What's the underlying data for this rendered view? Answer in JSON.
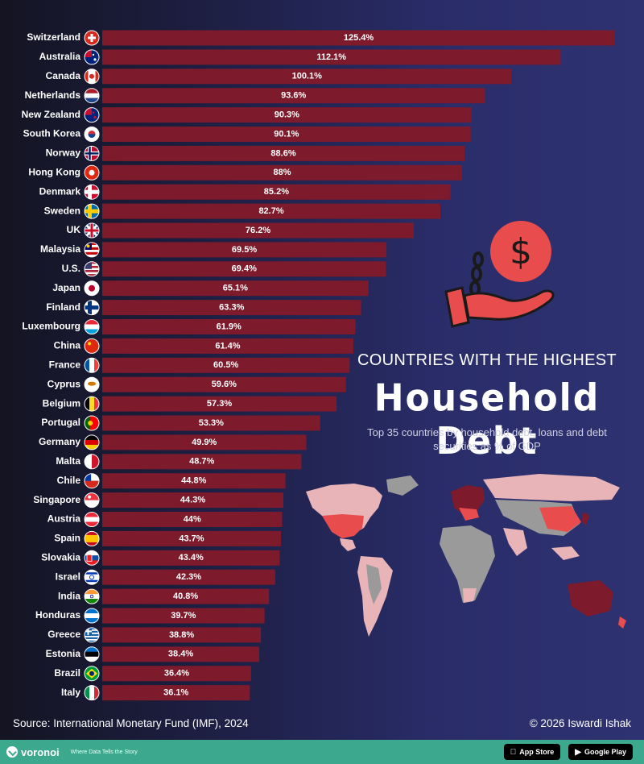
{
  "title_line1": "COUNTRIES WITH THE HIGHEST",
  "title_line2": "Household Debt",
  "subtitle": "Top 35 countries by household debt, loans and debt securities as % of GDP",
  "source": "Source: International Monetary Fund (IMF), 2024",
  "credit": "© 2026 Iswardi Ishak",
  "footer": {
    "brand": "voronoi",
    "tagline": "Where Data Tells the Story",
    "app_store": "App Store",
    "google_play": "Google Play"
  },
  "colors": {
    "bar": "#7d1a2b",
    "accent": "#e84c4c",
    "footer": "#3ca98e"
  },
  "chart_data": {
    "type": "bar",
    "orientation": "horizontal",
    "categories": [
      "Switzerland",
      "Australia",
      "Canada",
      "Netherlands",
      "New Zealand",
      "South Korea",
      "Norway",
      "Hong Kong",
      "Denmark",
      "Sweden",
      "UK",
      "Malaysia",
      "U.S.",
      "Japan",
      "Finland",
      "Luxembourg",
      "China",
      "France",
      "Cyprus",
      "Belgium",
      "Portugal",
      "Germany",
      "Malta",
      "Chile",
      "Singapore",
      "Austria",
      "Spain",
      "Slovakia",
      "Israel",
      "India",
      "Honduras",
      "Greece",
      "Estonia",
      "Brazil",
      "Italy"
    ],
    "values": [
      125.4,
      112.1,
      100.1,
      93.6,
      90.3,
      90.1,
      88.6,
      88,
      85.2,
      82.7,
      76.2,
      69.5,
      69.4,
      65.1,
      63.3,
      61.9,
      61.4,
      60.5,
      59.6,
      57.3,
      53.3,
      49.9,
      48.7,
      44.8,
      44.3,
      44,
      43.7,
      43.4,
      42.3,
      40.8,
      39.7,
      38.8,
      38.4,
      36.4,
      36.1
    ],
    "value_labels": [
      "125.4%",
      "112.1%",
      "100.1%",
      "93.6%",
      "90.3%",
      "90.1%",
      "88.6%",
      "88%",
      "85.2%",
      "82.7%",
      "76.2%",
      "69.5%",
      "69.4%",
      "65.1%",
      "63.3%",
      "61.9%",
      "61.4%",
      "60.5%",
      "59.6%",
      "57.3%",
      "53.3%",
      "49.9%",
      "48.7%",
      "44.8%",
      "44.3%",
      "44%",
      "43.7%",
      "43.4%",
      "42.3%",
      "40.8%",
      "39.7%",
      "38.8%",
      "38.4%",
      "36.4%",
      "36.1%"
    ],
    "flags": [
      "ch",
      "au",
      "ca",
      "nl",
      "nz",
      "kr",
      "no",
      "hk",
      "dk",
      "se",
      "uk",
      "my",
      "us",
      "jp",
      "fi",
      "lu",
      "cn",
      "fr",
      "cy",
      "be",
      "pt",
      "de",
      "mt",
      "cl",
      "sg",
      "at",
      "es",
      "sk",
      "il",
      "in",
      "hn",
      "gr",
      "ee",
      "br",
      "it"
    ]
  }
}
